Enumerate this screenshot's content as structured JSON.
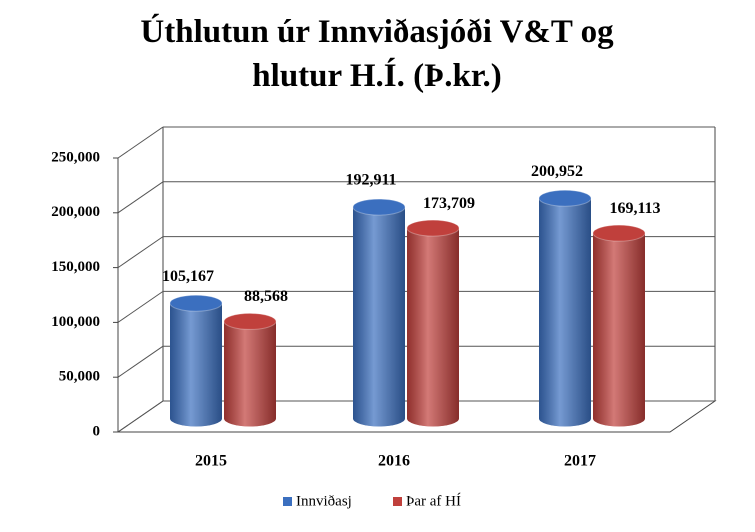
{
  "chart_data": {
    "type": "bar3d",
    "title": "Úthlutun úr Innviðasjóði V&T og hlutur H.Í. (Þ.kr.)",
    "categories": [
      "2015",
      "2016",
      "2017"
    ],
    "series": [
      {
        "name": "Innviðasj",
        "color": "#3b6fbf",
        "values": [
          105167,
          192911,
          200952
        ],
        "value_labels": [
          "105,167",
          "192,911",
          "200,952"
        ]
      },
      {
        "name": "Þar af HÍ",
        "color": "#c0403c",
        "values": [
          88568,
          173709,
          169113
        ],
        "value_labels": [
          "88,568",
          "173,709",
          "169,113"
        ]
      }
    ],
    "ylim": [
      0,
      250000
    ],
    "yticks": [
      0,
      {
        "value": 50000,
        "label": "50,000"
      },
      {
        "value": 100000,
        "label": "100,000"
      },
      {
        "value": 150000,
        "label": "150,000"
      },
      {
        "value": 200000,
        "label": "200,000"
      },
      {
        "value": 250000,
        "label": "250,000"
      }
    ],
    "grid": true,
    "legend": "bottom"
  }
}
